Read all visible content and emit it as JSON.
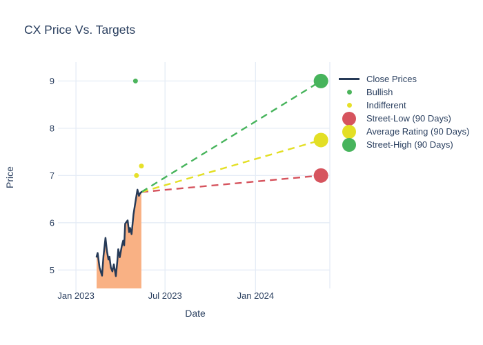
{
  "title": "CX Price Vs. Targets",
  "chart_data": {
    "type": "line",
    "title": "CX Price Vs. Targets",
    "xlabel": "Date",
    "ylabel": "Price",
    "x_ticks": [
      {
        "label": "Jan 2023",
        "date": "2023-01-01"
      },
      {
        "label": "Jul 2023",
        "date": "2023-07-01"
      },
      {
        "label": "Jan 2024",
        "date": "2024-01-01"
      }
    ],
    "y_ticks": [
      5,
      6,
      7,
      8,
      9
    ],
    "x_range": [
      "2022-12-01",
      "2024-05-31"
    ],
    "y_range": [
      4.61,
      9.4
    ],
    "grid": true,
    "legend_position": "right",
    "colors": {
      "text": "#2a3f5f",
      "grid": "#e5ecf6",
      "background": "#ffffff",
      "close_line": "#263a57",
      "close_fill": "#f9b184",
      "bullish": "#4cb45c",
      "indifferent": "#e6e029",
      "street_low": "#d6545e",
      "average_rating": "#e3df25",
      "street_high": "#47b45c"
    },
    "close_prices": {
      "name": "Close Prices",
      "dates": [
        "2023-02-12",
        "2023-02-14",
        "2023-02-18",
        "2023-02-23",
        "2023-02-26",
        "2023-03-02",
        "2023-03-05",
        "2023-03-08",
        "2023-03-10",
        "2023-03-13",
        "2023-03-16",
        "2023-03-19",
        "2023-03-23",
        "2023-03-26",
        "2023-03-28",
        "2023-03-31",
        "2023-04-04",
        "2023-04-07",
        "2023-04-09",
        "2023-04-11",
        "2023-04-16",
        "2023-04-19",
        "2023-04-21",
        "2023-04-24",
        "2023-04-28",
        "2023-05-02",
        "2023-05-06",
        "2023-05-09",
        "2023-05-11",
        "2023-05-14"
      ],
      "values": [
        5.28,
        5.36,
        5.05,
        4.88,
        5.3,
        5.68,
        5.4,
        5.22,
        5.28,
        5.05,
        4.97,
        5.12,
        4.87,
        5.18,
        5.44,
        5.27,
        5.5,
        5.62,
        5.52,
        5.98,
        6.05,
        5.8,
        5.89,
        5.76,
        6.18,
        6.45,
        6.7,
        6.57,
        6.62,
        6.65
      ]
    },
    "ratings": [
      {
        "name": "Bullish",
        "color": "#4cb45c",
        "points": [
          {
            "date": "2023-05-02",
            "value": 9.0
          }
        ]
      },
      {
        "name": "Indifferent",
        "color": "#e6e029",
        "points": [
          {
            "date": "2023-05-04",
            "value": 7.0
          },
          {
            "date": "2023-05-14",
            "value": 7.2
          }
        ]
      }
    ],
    "trend_origin": {
      "date": "2023-05-14",
      "value": 6.65
    },
    "targets": [
      {
        "name": "Street-Low (90 Days)",
        "color": "#d6545e",
        "date": "2024-05-13",
        "value": 7.0
      },
      {
        "name": "Average Rating (90 Days)",
        "color": "#e3df25",
        "date": "2024-05-13",
        "value": 7.75
      },
      {
        "name": "Street-High (90 Days)",
        "color": "#47b45c",
        "date": "2024-05-13",
        "value": 9.0
      }
    ]
  },
  "legend": {
    "items": [
      {
        "label": "Close Prices",
        "marker": "line",
        "color": "#263a57"
      },
      {
        "label": "Bullish",
        "marker": "dot",
        "color": "#4cb45c"
      },
      {
        "label": "Indifferent",
        "marker": "dot",
        "color": "#e6e029"
      },
      {
        "label": "Street-Low (90 Days)",
        "marker": "circle",
        "color": "#d6545e"
      },
      {
        "label": "Average Rating (90 Days)",
        "marker": "circle",
        "color": "#e3df25"
      },
      {
        "label": "Street-High (90 Days)",
        "marker": "circle",
        "color": "#47b45c"
      }
    ]
  }
}
